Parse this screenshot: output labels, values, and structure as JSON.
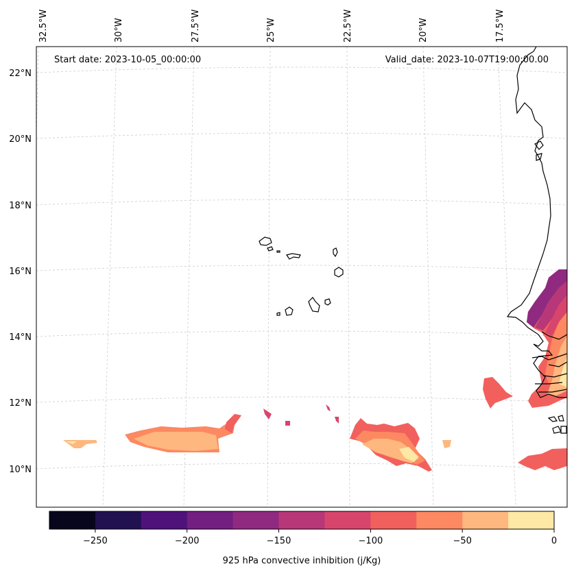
{
  "header": {
    "start_date": "Start date: 2023-10-05_00:00:00",
    "valid_date": "Valid_date: 2023-10-07T19:00:00.00"
  },
  "axes": {
    "lon_labels": [
      "32.5°W",
      "30°W",
      "27.5°W",
      "25°W",
      "22.5°W",
      "20°W",
      "17.5°W"
    ],
    "lat_labels": [
      "22°N",
      "20°N",
      "18°N",
      "16°N",
      "14°N",
      "12°N",
      "10°N"
    ]
  },
  "colorbar": {
    "label": "925 hPa convective inhibition (j/Kg)",
    "tick_labels": [
      "−250",
      "−200",
      "−150",
      "−100",
      "−50",
      "0"
    ],
    "levels": [
      -275,
      -250,
      -225,
      -200,
      -175,
      -150,
      -125,
      -100,
      -75,
      -50,
      -25,
      0
    ],
    "colors": [
      "#07061c",
      "#221150",
      "#4f127b",
      "#721f81",
      "#8f2a80",
      "#b73779",
      "#d8456c",
      "#f1605d",
      "#fc8961",
      "#feb77e",
      "#fde8a5"
    ]
  },
  "colors": {
    "gridline": "#cccccc",
    "coastline": "#000000",
    "frame": "#000000"
  }
}
